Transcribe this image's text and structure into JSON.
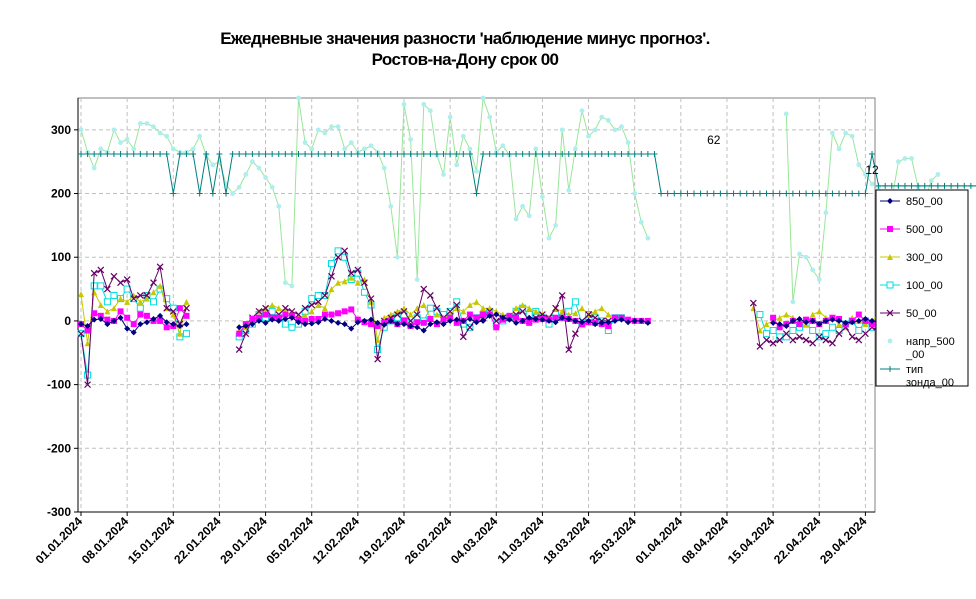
{
  "chart_data": {
    "type": "line",
    "title": "Ежедневные значения разности 'наблюдение минус прогноз'.",
    "subtitle": "Ростов-на-Дону     срок 00",
    "xlabel": "",
    "ylabel": "",
    "ylim": [
      -300,
      350
    ],
    "yticks": [
      "300",
      "200",
      "100",
      "0",
      "-100",
      "-200",
      "-300"
    ],
    "ytick_values": [
      300,
      200,
      100,
      0,
      -100,
      -200,
      -300
    ],
    "x_start": "2024-01-01",
    "x_end": "2024-04-30",
    "xtick_labels": [
      "01.01.2024",
      "08.01.2024",
      "15.01.2024",
      "22.01.2024",
      "29.01.2024",
      "05.02.2024",
      "12.02.2024",
      "19.02.2024",
      "26.02.2024",
      "04.03.2024",
      "11.03.2024",
      "18.03.2024",
      "25.03.2024",
      "01.04.2024",
      "08.04.2024",
      "15.04.2024",
      "22.04.2024",
      "29.04.2024"
    ],
    "grid": true,
    "legend_position": "right",
    "annotations": [
      {
        "text": "62",
        "x": "2024-04-06",
        "y": 262
      },
      {
        "text": "12",
        "x": "2024-04-30",
        "y": 215
      }
    ],
    "series": [
      {
        "name": "850_00",
        "color": "#000080",
        "marker": "diamond",
        "values": [
          -5,
          -8,
          2,
          3,
          -5,
          0,
          5,
          -12,
          -18,
          -5,
          -2,
          3,
          8,
          -2,
          -5,
          -8,
          -5,
          null,
          null,
          null,
          null,
          null,
          null,
          null,
          -10,
          -8,
          -5,
          0,
          -3,
          2,
          0,
          3,
          5,
          -2,
          -5,
          -4,
          -2,
          3,
          0,
          -3,
          -5,
          -12,
          -2,
          0,
          2,
          -3,
          -6,
          0,
          -5,
          -5,
          -8,
          -10,
          -15,
          -5,
          -2,
          -5,
          0,
          2,
          0,
          3,
          -2,
          0,
          8,
          10,
          5,
          2,
          -3,
          0,
          5,
          3,
          2,
          0,
          -2,
          5,
          3,
          0,
          -2,
          0,
          -5,
          -3,
          -2,
          0,
          2,
          -2,
          0,
          0,
          -3,
          null,
          null,
          null,
          null,
          null,
          null,
          null,
          null,
          null,
          null,
          null,
          null,
          null,
          null,
          null,
          null,
          null,
          null,
          -3,
          -5,
          -8,
          0,
          3,
          -2,
          0,
          -5,
          0,
          2,
          0,
          -3,
          -2,
          0,
          3,
          0,
          -2,
          5,
          0,
          -3,
          5,
          8,
          3,
          0,
          -2
        ]
      },
      {
        "name": "500_00",
        "color": "#FF00FF",
        "marker": "square",
        "values": [
          -5,
          -15,
          12,
          8,
          2,
          0,
          15,
          5,
          -5,
          10,
          8,
          0,
          0,
          -10,
          -8,
          20,
          8,
          null,
          null,
          null,
          null,
          null,
          null,
          null,
          -20,
          -5,
          3,
          5,
          10,
          5,
          5,
          10,
          8,
          2,
          0,
          3,
          3,
          10,
          10,
          12,
          15,
          18,
          2,
          -2,
          -5,
          -8,
          -3,
          0,
          -5,
          0,
          -8,
          -2,
          -3,
          3,
          -5,
          2,
          5,
          -3,
          0,
          10,
          5,
          10,
          10,
          -10,
          2,
          8,
          5,
          0,
          -3,
          2,
          3,
          2,
          5,
          5,
          3,
          0,
          -5,
          -2,
          -3,
          -5,
          -8,
          5,
          5,
          2,
          0,
          0,
          0,
          null,
          null,
          null,
          null,
          null,
          null,
          null,
          null,
          null,
          null,
          null,
          null,
          null,
          null,
          null,
          null,
          null,
          null,
          5,
          -10,
          -5,
          0,
          -5,
          2,
          0,
          -5,
          0,
          5,
          3,
          -5,
          0,
          10,
          0,
          -5,
          5,
          0,
          -3,
          0,
          -8,
          -5,
          -3,
          -2,
          0
        ]
      },
      {
        "name": "300_00",
        "color": "#C8C800",
        "marker": "triangle",
        "values": [
          42,
          -35,
          45,
          25,
          15,
          20,
          35,
          30,
          40,
          30,
          35,
          45,
          55,
          20,
          10,
          -20,
          30,
          null,
          null,
          null,
          null,
          null,
          null,
          null,
          -15,
          -10,
          5,
          15,
          20,
          25,
          20,
          15,
          10,
          5,
          8,
          15,
          25,
          20,
          50,
          60,
          62,
          68,
          60,
          65,
          30,
          -30,
          5,
          10,
          15,
          20,
          10,
          20,
          25,
          5,
          10,
          5,
          10,
          20,
          15,
          25,
          30,
          20,
          20,
          15,
          10,
          5,
          20,
          25,
          20,
          15,
          10,
          5,
          20,
          15,
          10,
          12,
          20,
          10,
          15,
          20,
          10,
          5,
          null,
          null,
          null,
          null,
          null,
          null,
          null,
          null,
          null,
          null,
          null,
          null,
          null,
          null,
          null,
          null,
          null,
          null,
          null,
          null,
          20,
          -15,
          -5,
          0,
          5,
          10,
          5,
          0,
          -5,
          10,
          15,
          5,
          5,
          -5,
          -10,
          5,
          0,
          -5,
          0,
          10,
          -5,
          0,
          5,
          -10
        ]
      },
      {
        "name": "100_00",
        "color": "#00DDDD",
        "marker": "square-open",
        "values": [
          -20,
          -85,
          55,
          55,
          30,
          40,
          35,
          50,
          35,
          20,
          40,
          30,
          50,
          35,
          20,
          -25,
          -20,
          null,
          null,
          null,
          null,
          null,
          null,
          null,
          -25,
          -15,
          -5,
          10,
          5,
          15,
          5,
          -5,
          -10,
          -5,
          15,
          35,
          40,
          40,
          90,
          110,
          100,
          65,
          75,
          45,
          25,
          -45,
          -10,
          0,
          5,
          10,
          -5,
          5,
          0,
          20,
          15,
          10,
          15,
          30,
          -5,
          -10,
          5,
          10,
          15,
          -5,
          0,
          5,
          15,
          20,
          10,
          15,
          5,
          -5,
          10,
          5,
          15,
          30,
          -5,
          10,
          5,
          0,
          -15,
          5,
          5,
          null,
          null,
          null,
          null,
          null,
          null,
          null,
          null,
          null,
          null,
          null,
          null,
          null,
          null,
          null,
          null,
          null,
          null,
          null,
          null,
          10,
          -20,
          -15,
          -25,
          -25,
          -15,
          -10,
          -5,
          -15,
          -25,
          -20,
          -10,
          -15,
          -5,
          0,
          -15,
          0,
          -10,
          -5,
          -20,
          -15,
          -10,
          -20,
          -15
        ]
      },
      {
        "name": "50_00",
        "color": "#660066",
        "marker": "x",
        "values": [
          -20,
          -100,
          75,
          80,
          50,
          70,
          60,
          65,
          35,
          40,
          40,
          60,
          85,
          20,
          15,
          -5,
          20,
          null,
          null,
          null,
          null,
          null,
          null,
          null,
          -45,
          -20,
          5,
          15,
          20,
          5,
          10,
          20,
          15,
          10,
          20,
          25,
          30,
          40,
          70,
          100,
          110,
          75,
          80,
          60,
          35,
          -60,
          0,
          5,
          10,
          15,
          0,
          10,
          50,
          40,
          20,
          5,
          15,
          25,
          -25,
          -10,
          5,
          5,
          15,
          0,
          5,
          5,
          10,
          15,
          0,
          5,
          10,
          5,
          20,
          40,
          -45,
          -20,
          0,
          10,
          5,
          0,
          0,
          null,
          null,
          null,
          null,
          null,
          null,
          null,
          null,
          null,
          null,
          null,
          null,
          null,
          null,
          null,
          null,
          null,
          null,
          null,
          null,
          null,
          28,
          -40,
          -30,
          -35,
          -30,
          -20,
          -30,
          -25,
          -30,
          -35,
          -25,
          -30,
          -35,
          -20,
          -10,
          -25,
          -30,
          -20,
          -10,
          -15,
          -25,
          -20,
          -25,
          -20
        ]
      },
      {
        "name": "напр_500_00",
        "color": "#AEEEEE",
        "marker": "circle",
        "values": [
          300,
          265,
          240,
          270,
          265,
          300,
          280,
          285,
          270,
          310,
          310,
          305,
          295,
          290,
          270,
          265,
          265,
          270,
          290,
          260,
          245,
          250,
          215,
          200,
          210,
          230,
          250,
          240,
          225,
          210,
          180,
          60,
          55,
          350,
          280,
          270,
          300,
          295,
          305,
          305,
          270,
          280,
          265,
          270,
          275,
          265,
          240,
          180,
          100,
          340,
          285,
          65,
          340,
          330,
          260,
          230,
          320,
          245,
          290,
          270,
          235,
          350,
          320,
          265,
          275,
          260,
          160,
          180,
          165,
          270,
          195,
          130,
          150,
          300,
          205,
          270,
          330,
          290,
          300,
          320,
          315,
          300,
          305,
          280,
          200,
          155,
          130,
          null,
          null,
          null,
          null,
          null,
          null,
          null,
          null,
          null,
          null,
          null,
          null,
          null,
          null,
          null,
          null,
          null,
          null,
          null,
          null,
          325,
          30,
          105,
          100,
          80,
          65,
          170,
          295,
          270,
          295,
          290,
          245,
          230,
          215,
          210,
          145,
          190,
          250,
          255,
          255,
          210,
          190,
          220,
          230
        ]
      },
      {
        "name": "тип зонда_00",
        "color": "#008080",
        "marker": "plus",
        "values": [
          262,
          262,
          262,
          262,
          262,
          262,
          262,
          262,
          262,
          262,
          262,
          262,
          262,
          262,
          200,
          262,
          262,
          262,
          200,
          262,
          200,
          262,
          200,
          262,
          262,
          262,
          262,
          262,
          262,
          262,
          262,
          262,
          262,
          262,
          262,
          262,
          262,
          262,
          262,
          262,
          262,
          262,
          262,
          262,
          262,
          262,
          262,
          262,
          262,
          262,
          262,
          262,
          262,
          262,
          262,
          262,
          262,
          262,
          262,
          262,
          200,
          262,
          262,
          262,
          262,
          262,
          262,
          262,
          262,
          262,
          262,
          262,
          262,
          262,
          262,
          262,
          262,
          262,
          262,
          262,
          262,
          262,
          262,
          262,
          262,
          262,
          262,
          262,
          200,
          200,
          200,
          200,
          200,
          200,
          200,
          200,
          200,
          200,
          200,
          200,
          200,
          200,
          200,
          200,
          200,
          200,
          200,
          200,
          200,
          200,
          200,
          200,
          200,
          200,
          200,
          200,
          200,
          200,
          200,
          200,
          262,
          212,
          212,
          212,
          212,
          212,
          212,
          212,
          212,
          212,
          212,
          212,
          212,
          212,
          212,
          212,
          212,
          212,
          212,
          212,
          212,
          212,
          212,
          212,
          212,
          212,
          212,
          212,
          212,
          212
        ]
      }
    ]
  }
}
